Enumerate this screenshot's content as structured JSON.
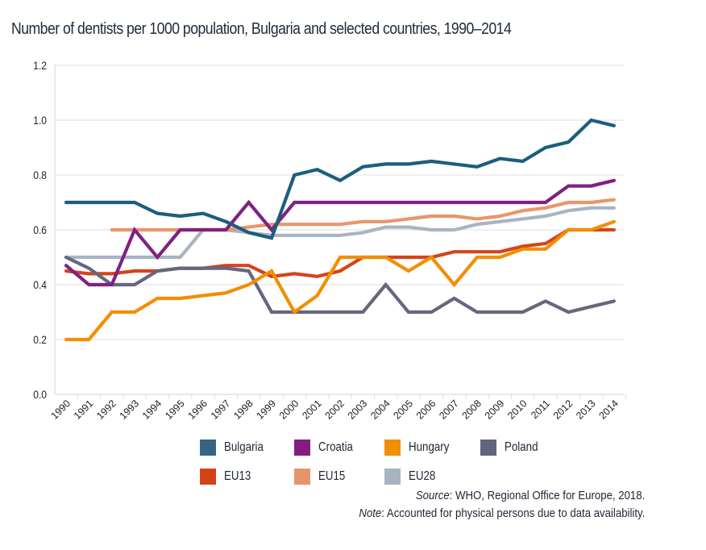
{
  "chart_data": {
    "type": "line",
    "title": "Number of dentists per 1000 population, Bulgaria and selected countries, 1990–2014",
    "xlabel": "",
    "ylabel": "",
    "ylim": [
      0,
      1.2
    ],
    "yticks": [
      "0.0",
      "0.2",
      "0.4",
      "0.6",
      "0.8",
      "1.0",
      "1.2"
    ],
    "ytick_values": [
      0,
      0.2,
      0.4,
      0.6,
      0.8,
      1.0,
      1.2
    ],
    "grid": "horizontal",
    "legend_position": "bottom",
    "x": [
      "1990",
      "1991",
      "1992",
      "1993",
      "1994",
      "1995",
      "1996",
      "1997",
      "1998",
      "1999",
      "2000",
      "2001",
      "2002",
      "2003",
      "2004",
      "2005",
      "2006",
      "2007",
      "2008",
      "2009",
      "2010",
      "2011",
      "2012",
      "2013",
      "2014"
    ],
    "series": [
      {
        "name": "EU28",
        "color": "#a9b4c3",
        "values": [
          0.5,
          0.5,
          0.5,
          0.5,
          0.5,
          0.5,
          0.6,
          0.6,
          0.59,
          0.58,
          0.58,
          0.58,
          0.58,
          0.59,
          0.61,
          0.61,
          0.6,
          0.6,
          0.62,
          0.63,
          0.64,
          0.65,
          0.67,
          0.68,
          0.68
        ]
      },
      {
        "name": "EU15",
        "color": "#e9956b",
        "values": [
          null,
          null,
          0.6,
          0.6,
          0.6,
          0.6,
          0.6,
          0.6,
          0.61,
          0.62,
          0.62,
          0.62,
          0.62,
          0.63,
          0.63,
          0.64,
          0.65,
          0.65,
          0.64,
          0.65,
          0.67,
          0.68,
          0.7,
          0.7,
          0.71
        ]
      },
      {
        "name": "EU13",
        "color": "#d4441b",
        "values": [
          0.45,
          0.44,
          0.44,
          0.45,
          0.45,
          0.46,
          0.46,
          0.47,
          0.47,
          0.43,
          0.44,
          0.43,
          0.45,
          0.5,
          0.5,
          0.5,
          0.5,
          0.52,
          0.52,
          0.52,
          0.54,
          0.55,
          0.6,
          0.6,
          0.6
        ]
      },
      {
        "name": "Poland",
        "color": "#65677f",
        "values": [
          0.5,
          0.46,
          0.4,
          0.4,
          0.45,
          0.46,
          0.46,
          0.46,
          0.45,
          0.3,
          0.3,
          0.3,
          0.3,
          0.3,
          0.4,
          0.3,
          0.3,
          0.35,
          0.3,
          0.3,
          0.3,
          0.34,
          0.3,
          0.32,
          0.34
        ]
      },
      {
        "name": "Hungary",
        "color": "#f28e00",
        "values": [
          0.2,
          0.2,
          0.3,
          0.3,
          0.35,
          0.35,
          0.36,
          0.37,
          0.4,
          0.45,
          0.3,
          0.36,
          0.5,
          0.5,
          0.5,
          0.45,
          0.5,
          0.4,
          0.5,
          0.5,
          0.53,
          0.53,
          0.6,
          0.6,
          0.63
        ]
      },
      {
        "name": "Croatia",
        "color": "#7f2183",
        "values": [
          0.47,
          0.4,
          0.4,
          0.6,
          0.5,
          0.6,
          0.6,
          0.6,
          0.7,
          0.6,
          0.7,
          0.7,
          0.7,
          0.7,
          0.7,
          0.7,
          0.7,
          0.7,
          0.7,
          0.7,
          0.7,
          0.7,
          0.76,
          0.76,
          0.78
        ]
      },
      {
        "name": "Bulgaria",
        "color": "#1b5e7e",
        "values": [
          0.7,
          0.7,
          0.7,
          0.7,
          0.66,
          0.65,
          0.66,
          0.63,
          0.59,
          0.57,
          0.8,
          0.82,
          0.78,
          0.83,
          0.84,
          0.84,
          0.85,
          0.84,
          0.83,
          0.86,
          0.85,
          0.9,
          0.92,
          1.0,
          0.98
        ]
      }
    ]
  },
  "legend": {
    "row1": [
      {
        "label": "Bulgaria",
        "color": "#346684"
      },
      {
        "label": "Croatia",
        "color": "#841d7f"
      },
      {
        "label": "Hungary",
        "color": "#f28e00"
      },
      {
        "label": "Poland",
        "color": "#626380"
      }
    ],
    "row2": [
      {
        "label": "EU13",
        "color": "#d4421a"
      },
      {
        "label": "EU15",
        "color": "#e6946a"
      },
      {
        "label": "EU28",
        "color": "#a8b3c2"
      }
    ]
  },
  "notes": {
    "source_label": "Source",
    "source_text": ": WHO, Regional Office for Europe, 2018.",
    "note_label": "Note",
    "note_text": ": Accounted for physical persons due to data availability."
  }
}
